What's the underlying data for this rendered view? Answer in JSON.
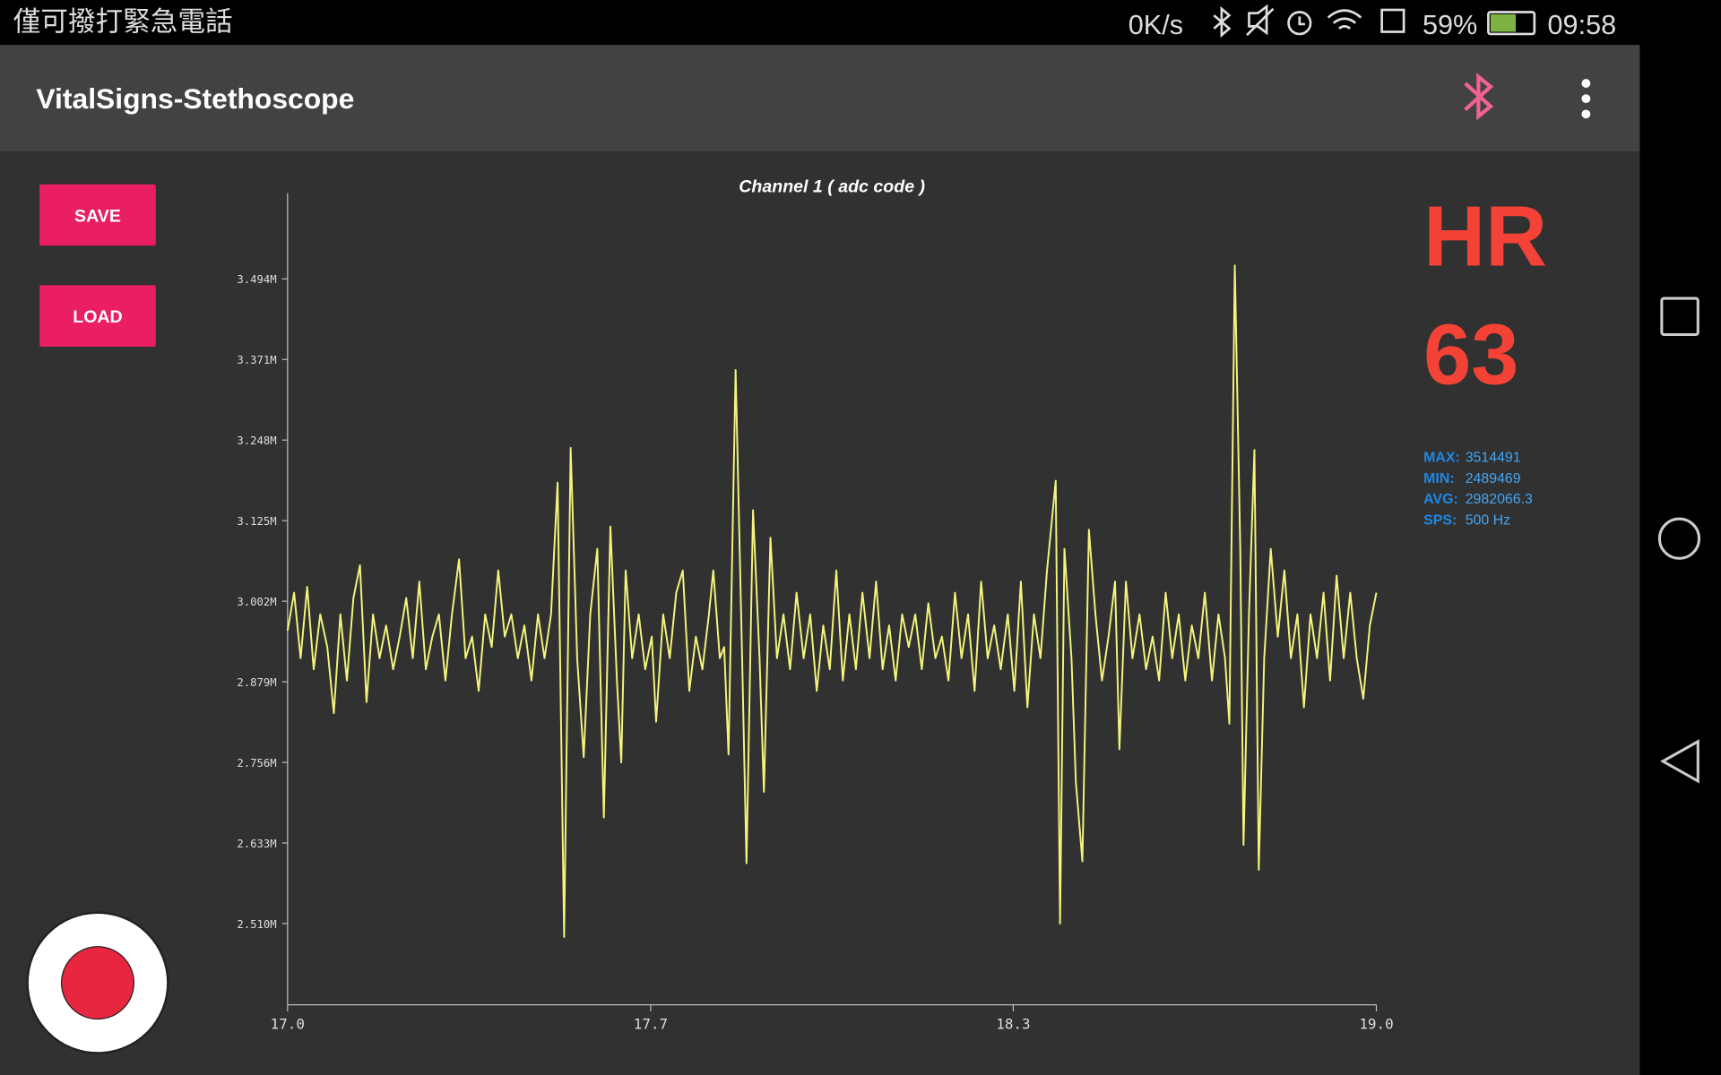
{
  "status_bar": {
    "carrier": "僅可撥打緊急電話",
    "speed": "0K/s",
    "battery": "59%",
    "time": "09:58"
  },
  "app_bar": {
    "title": "VitalSigns-Stethoscope"
  },
  "buttons": {
    "save": "SAVE",
    "load": "LOAD"
  },
  "heart_rate": {
    "label": "HR",
    "value": 63
  },
  "stats": [
    {
      "label": "MAX:",
      "value": 3514491
    },
    {
      "label": "MIN:",
      "value": 2489469
    },
    {
      "label": "AVG:",
      "value": 2982066.3
    },
    {
      "label": "SPS:",
      "value": "500 Hz"
    }
  ],
  "chart_data": {
    "type": "line",
    "title": "Channel 1 ( adc code )",
    "color": "#f4f47c",
    "xlim": [
      17,
      19
    ],
    "xticks": [
      {
        "value": 17,
        "label": "17.0"
      },
      {
        "value": 17.667,
        "label": "17.7"
      },
      {
        "value": 18.333,
        "label": "18.3"
      },
      {
        "value": 19,
        "label": "19.0"
      }
    ],
    "ylim": [
      2386000,
      3625000
    ],
    "yticks": [
      {
        "value": 3494000,
        "label": "3.494M"
      },
      {
        "value": 3371000,
        "label": "3.371M"
      },
      {
        "value": 3248000,
        "label": "3.248M"
      },
      {
        "value": 3125000,
        "label": "3.125M"
      },
      {
        "value": 3002000,
        "label": "3.002M"
      },
      {
        "value": 2879000,
        "label": "2.879M"
      },
      {
        "value": 2756000,
        "label": "2.756M"
      },
      {
        "value": 2633000,
        "label": "2.633M"
      },
      {
        "value": 2510000,
        "label": "2.510M"
      }
    ],
    "x": [
      17.0,
      17.012,
      17.024,
      17.036,
      17.048,
      17.06,
      17.073,
      17.085,
      17.097,
      17.109,
      17.121,
      17.133,
      17.145,
      17.157,
      17.169,
      17.181,
      17.194,
      17.206,
      17.218,
      17.23,
      17.242,
      17.254,
      17.266,
      17.278,
      17.29,
      17.302,
      17.315,
      17.327,
      17.339,
      17.351,
      17.363,
      17.375,
      17.387,
      17.399,
      17.411,
      17.423,
      17.435,
      17.448,
      17.46,
      17.472,
      17.484,
      17.496,
      17.508,
      17.52,
      17.532,
      17.544,
      17.556,
      17.569,
      17.581,
      17.593,
      17.605,
      17.613,
      17.621,
      17.633,
      17.645,
      17.657,
      17.669,
      17.677,
      17.69,
      17.702,
      17.714,
      17.726,
      17.738,
      17.75,
      17.762,
      17.774,
      17.782,
      17.794,
      17.802,
      17.81,
      17.823,
      17.835,
      17.843,
      17.855,
      17.867,
      17.875,
      17.887,
      17.899,
      17.911,
      17.923,
      17.935,
      17.948,
      17.96,
      17.972,
      17.984,
      17.996,
      18.008,
      18.02,
      18.032,
      18.044,
      18.056,
      18.069,
      18.081,
      18.093,
      18.105,
      18.117,
      18.129,
      18.141,
      18.153,
      18.165,
      18.177,
      18.19,
      18.202,
      18.214,
      18.226,
      18.238,
      18.25,
      18.262,
      18.274,
      18.286,
      18.298,
      18.31,
      18.323,
      18.335,
      18.347,
      18.359,
      18.371,
      18.383,
      18.395,
      18.411,
      18.419,
      18.427,
      18.44,
      18.448,
      18.46,
      18.472,
      18.484,
      18.496,
      18.508,
      18.52,
      18.528,
      18.54,
      18.552,
      18.565,
      18.577,
      18.589,
      18.601,
      18.613,
      18.625,
      18.637,
      18.649,
      18.661,
      18.673,
      18.685,
      18.698,
      18.71,
      18.722,
      18.73,
      18.74,
      18.75,
      18.756,
      18.766,
      18.776,
      18.784,
      18.794,
      18.806,
      18.819,
      18.831,
      18.843,
      18.855,
      18.867,
      18.879,
      18.891,
      18.903,
      18.915,
      18.927,
      18.94,
      18.952,
      18.964,
      18.976,
      18.988,
      19.0
    ],
    "values": [
      2957000,
      3015000,
      2915000,
      3024000,
      2898000,
      2982000,
      2932000,
      2831000,
      2982000,
      2881000,
      3007000,
      3057000,
      2848000,
      2982000,
      2915000,
      2965000,
      2898000,
      2948000,
      3007000,
      2915000,
      3032000,
      2898000,
      2948000,
      2982000,
      2881000,
      2982000,
      3066000,
      2915000,
      2948000,
      2865000,
      2982000,
      2932000,
      3049000,
      2948000,
      2982000,
      2915000,
      2965000,
      2881000,
      2982000,
      2915000,
      2982000,
      3183000,
      2489469,
      3236000,
      2915000,
      2764000,
      2982000,
      3082000,
      2672000,
      3116000,
      2881000,
      2756000,
      3049000,
      2915000,
      2982000,
      2898000,
      2948000,
      2818000,
      2982000,
      2915000,
      3015000,
      3049000,
      2865000,
      2948000,
      2898000,
      2982000,
      3049000,
      2915000,
      2932000,
      2768000,
      3355000,
      2915000,
      2602000,
      3141000,
      2915000,
      2711000,
      3099000,
      2915000,
      2982000,
      2898000,
      3015000,
      2915000,
      2982000,
      2865000,
      2965000,
      2898000,
      3049000,
      2881000,
      2982000,
      2898000,
      3015000,
      2915000,
      3032000,
      2898000,
      2965000,
      2881000,
      2982000,
      2932000,
      2982000,
      2898000,
      2999000,
      2915000,
      2948000,
      2881000,
      3015000,
      2915000,
      2982000,
      2865000,
      3032000,
      2915000,
      2965000,
      2898000,
      2982000,
      2865000,
      3032000,
      2840000,
      2982000,
      2915000,
      3049000,
      3186000,
      2510000,
      3082000,
      2915000,
      2726000,
      2605000,
      3111000,
      2982000,
      2881000,
      2948000,
      3032000,
      2776000,
      3032000,
      2915000,
      2982000,
      2898000,
      2948000,
      2881000,
      3015000,
      2915000,
      2982000,
      2881000,
      2965000,
      2915000,
      3015000,
      2881000,
      2982000,
      2915000,
      2815000,
      3514491,
      3082000,
      2630000,
      2982000,
      3233000,
      2592000,
      2915000,
      3082000,
      2948000,
      3049000,
      2915000,
      2982000,
      2840000,
      2982000,
      2915000,
      3015000,
      2881000,
      3041000,
      2915000,
      3015000,
      2915000,
      2853000,
      2965000,
      3015000
    ]
  }
}
